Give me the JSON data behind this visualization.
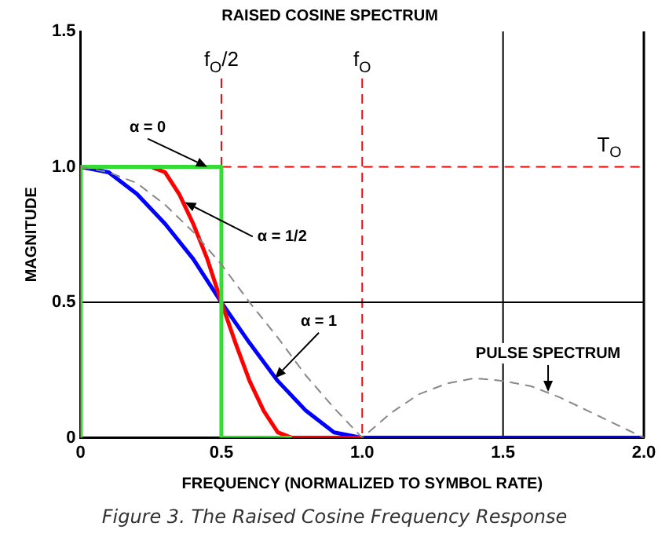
{
  "chart_data": {
    "type": "line",
    "title": "RAISED COSINE SPECTRUM",
    "xlabel": "FREQUENCY (NORMALIZED TO SYMBOL RATE)",
    "ylabel": "MAGNITUDE",
    "xlim": [
      0,
      2
    ],
    "xticks": [
      0,
      0.5,
      {
        "value": 1,
        "label": "1.0"
      },
      1.5,
      {
        "value": 2,
        "label": "2.0"
      }
    ],
    "ylim": [
      0,
      1.5
    ],
    "yticks": [
      0,
      0.5,
      {
        "value": 1,
        "label": "1.0"
      },
      1.5
    ],
    "grid": false,
    "legend": false,
    "marker": "none",
    "series": [
      {
        "color": "#888888",
        "line_style": "dashed",
        "x": [
          0,
          0.1,
          0.2,
          0.3,
          0.4,
          0.5,
          0.6,
          0.7,
          0.8,
          0.9,
          1,
          1.1,
          1.2,
          1.3,
          1.4,
          1.5,
          1.6,
          1.7,
          1.8,
          1.9,
          2
        ],
        "values": [
          1,
          0.98,
          0.94,
          0.86,
          0.76,
          0.64,
          0.5,
          0.37,
          0.23,
          0.11,
          0,
          0.09,
          0.16,
          0.2,
          0.22,
          0.21,
          0.19,
          0.15,
          0.1,
          0.05,
          0
        ]
      },
      {
        "color": "#33dd33",
        "line_style": "solid",
        "x": [
          0,
          0,
          0.5,
          0.5,
          0.75
        ],
        "values": [
          0,
          1,
          1,
          0,
          0
        ]
      },
      {
        "color": "#ff0000",
        "line_style": "solid",
        "x": [
          0,
          0,
          0.25,
          0.3,
          0.35,
          0.4,
          0.45,
          0.5,
          0.55,
          0.6,
          0.65,
          0.7,
          0.75,
          1
        ],
        "values": [
          0,
          1,
          1,
          0.98,
          0.9,
          0.79,
          0.66,
          0.5,
          0.35,
          0.21,
          0.1,
          0.02,
          0,
          0
        ]
      },
      {
        "color": "#0000ff",
        "line_style": "solid",
        "x": [
          0,
          0,
          0.1,
          0.2,
          0.3,
          0.4,
          0.5,
          0.6,
          0.7,
          0.8,
          0.9,
          1,
          2
        ],
        "values": [
          0,
          1,
          0.98,
          0.9,
          0.79,
          0.66,
          0.5,
          0.35,
          0.21,
          0.1,
          0.02,
          0,
          0
        ]
      }
    ],
    "ref_lines": [
      {
        "axis": "x",
        "value": 0.5,
        "label": "f$_{O}$/2",
        "color": "#ff0000",
        "line_style": "dashed"
      },
      {
        "axis": "x",
        "value": 1,
        "label": "f$_{O}$",
        "color": "#ff0000",
        "line_style": "dashed"
      },
      {
        "axis": "y",
        "value": 1,
        "label": "T$_{O}$",
        "color": "#ff0000",
        "line_style": "dashed"
      },
      {
        "axis": "x",
        "value": 1.5,
        "color": "#000000",
        "line_style": "solid"
      },
      {
        "axis": "y",
        "value": 0.5,
        "color": "#000000",
        "line_style": "solid"
      }
    ],
    "annotations": [
      {
        "text": "α = 0",
        "x": 0.45,
        "y": 1
      },
      {
        "text": "α = 1/2",
        "x": 0.37,
        "y": 0.87
      },
      {
        "text": "α = 1",
        "x": 0.69,
        "y": 0.22
      },
      {
        "text": "PULSE SPECTRUM",
        "x": 1.66,
        "y": 0.17
      },
      "Figure 3. The Raised Cosine Frequency Response"
    ]
  }
}
